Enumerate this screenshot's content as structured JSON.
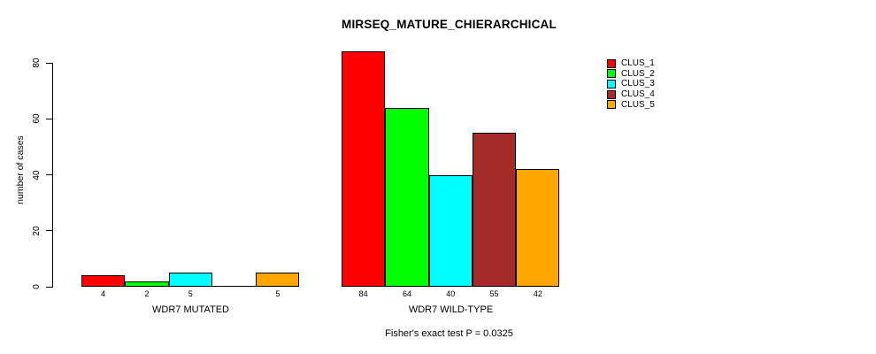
{
  "title": "MIRSEQ_MATURE_CHIERARCHICAL",
  "y_axis": {
    "label": "number of cases",
    "ticks": [
      0,
      20,
      40,
      60,
      80
    ]
  },
  "legend": {
    "entries": [
      {
        "label": "CLUS_1",
        "color": "#FF0000"
      },
      {
        "label": "CLUS_2",
        "color": "#00FF00"
      },
      {
        "label": "CLUS_3",
        "color": "#00FFFF"
      },
      {
        "label": "CLUS_4",
        "color": "#A52A2A"
      },
      {
        "label": "CLUS_5",
        "color": "#FFA500"
      }
    ]
  },
  "groups": [
    {
      "label": "WDR7 MUTATED",
      "bars": [
        {
          "cluster": "CLUS_1",
          "value": 4,
          "count_label": "4",
          "color": "#FF0000"
        },
        {
          "cluster": "CLUS_2",
          "value": 2,
          "count_label": "2",
          "color": "#00FF00"
        },
        {
          "cluster": "CLUS_3",
          "value": 5,
          "count_label": "5",
          "color": "#00FFFF"
        },
        {
          "cluster": "CLUS_4",
          "value": 0,
          "count_label": "",
          "color": "#A52A2A"
        },
        {
          "cluster": "CLUS_5",
          "value": 5,
          "count_label": "5",
          "color": "#FFA500"
        }
      ]
    },
    {
      "label": "WDR7 WILD-TYPE",
      "bars": [
        {
          "cluster": "CLUS_1",
          "value": 84,
          "count_label": "84",
          "color": "#FF0000"
        },
        {
          "cluster": "CLUS_2",
          "value": 64,
          "count_label": "64",
          "color": "#00FF00"
        },
        {
          "cluster": "CLUS_3",
          "value": 40,
          "count_label": "40",
          "color": "#00FFFF"
        },
        {
          "cluster": "CLUS_4",
          "value": 55,
          "count_label": "55",
          "color": "#A52A2A"
        },
        {
          "cluster": "CLUS_5",
          "value": 42,
          "count_label": "42",
          "color": "#FFA500"
        }
      ]
    }
  ],
  "footer": {
    "fisher_text": "Fisher's exact test P = 0.0325"
  },
  "chart_data": {
    "type": "bar",
    "title": "MIRSEQ_MATURE_CHIERARCHICAL",
    "xlabel": "",
    "ylabel": "number of cases",
    "ylim": [
      0,
      84
    ],
    "yticks": [
      0,
      20,
      40,
      60,
      80
    ],
    "grid": false,
    "legend_position": "top-right",
    "categories": [
      "WDR7 MUTATED",
      "WDR7 WILD-TYPE"
    ],
    "series": [
      {
        "name": "CLUS_1",
        "color": "#FF0000",
        "values": [
          4,
          84
        ]
      },
      {
        "name": "CLUS_2",
        "color": "#00FF00",
        "values": [
          2,
          64
        ]
      },
      {
        "name": "CLUS_3",
        "color": "#00FFFF",
        "values": [
          5,
          40
        ]
      },
      {
        "name": "CLUS_4",
        "color": "#A52A2A",
        "values": [
          0,
          55
        ]
      },
      {
        "name": "CLUS_5",
        "color": "#FFA500",
        "values": [
          5,
          42
        ]
      }
    ],
    "annotation": "Fisher's exact test P = 0.0325"
  }
}
